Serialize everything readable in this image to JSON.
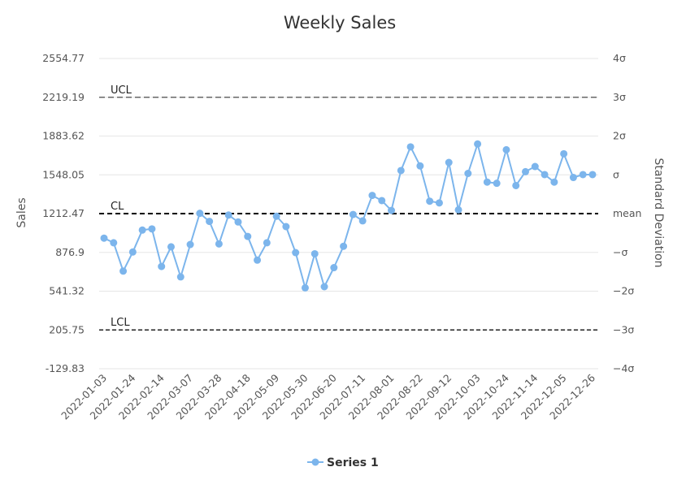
{
  "chart_data": {
    "type": "line",
    "title": "Weekly Sales",
    "ylabel": "Sales",
    "y2label": "Standard Deviation",
    "ylim": [
      -129.83,
      2554.77
    ],
    "yticks": [
      "2554.77",
      "2219.19",
      "1883.62",
      "1548.05",
      "1212.47",
      "876.9",
      "541.32",
      "205.75",
      "-129.83"
    ],
    "y2ticks": [
      "4σ",
      "3σ",
      "2σ",
      "σ",
      "mean",
      "−σ",
      "−2σ",
      "−3σ",
      "−4σ"
    ],
    "xticks": [
      "2022-01-03",
      "2022-01-24",
      "2022-02-14",
      "2022-03-07",
      "2022-03-28",
      "2022-04-18",
      "2022-05-09",
      "2022-05-30",
      "2022-06-20",
      "2022-07-11",
      "2022-08-01",
      "2022-08-22",
      "2022-09-12",
      "2022-10-03",
      "2022-10-24",
      "2022-11-14",
      "2022-12-05",
      "2022-12-26"
    ],
    "control_lines": [
      {
        "label": "UCL",
        "value": 2219.19
      },
      {
        "label": "CL",
        "value": 1212.47
      },
      {
        "label": "LCL",
        "value": 205.75
      }
    ],
    "grid": true,
    "legend_position": "bottom",
    "series_color": "#7cb5ec",
    "series": [
      {
        "name": "Series 1",
        "x": [
          "2022-01-03",
          "2022-01-10",
          "2022-01-17",
          "2022-01-24",
          "2022-01-31",
          "2022-02-07",
          "2022-02-14",
          "2022-02-21",
          "2022-02-28",
          "2022-03-07",
          "2022-03-14",
          "2022-03-21",
          "2022-03-28",
          "2022-04-04",
          "2022-04-11",
          "2022-04-18",
          "2022-04-25",
          "2022-05-02",
          "2022-05-09",
          "2022-05-16",
          "2022-05-23",
          "2022-05-30",
          "2022-06-06",
          "2022-06-13",
          "2022-06-20",
          "2022-06-27",
          "2022-07-04",
          "2022-07-11",
          "2022-07-18",
          "2022-07-25",
          "2022-08-01",
          "2022-08-08",
          "2022-08-15",
          "2022-08-22",
          "2022-08-29",
          "2022-09-05",
          "2022-09-12",
          "2022-09-19",
          "2022-09-26",
          "2022-10-03",
          "2022-10-10",
          "2022-10-17",
          "2022-10-24",
          "2022-10-31",
          "2022-11-07",
          "2022-11-14",
          "2022-11-21",
          "2022-11-28",
          "2022-12-05",
          "2022-12-12",
          "2022-12-19",
          "2022-12-26"
        ],
        "values": [
          1000,
          960,
          715,
          880,
          1070,
          1080,
          755,
          925,
          665,
          945,
          1215,
          1145,
          950,
          1200,
          1140,
          1015,
          810,
          960,
          1190,
          1100,
          875,
          570,
          865,
          580,
          745,
          930,
          1205,
          1150,
          1370,
          1325,
          1240,
          1585,
          1790,
          1625,
          1320,
          1305,
          1655,
          1245,
          1560,
          1815,
          1485,
          1475,
          1765,
          1455,
          1575,
          1620,
          1550,
          1485,
          1730,
          1525,
          1550,
          1550
        ]
      }
    ]
  }
}
